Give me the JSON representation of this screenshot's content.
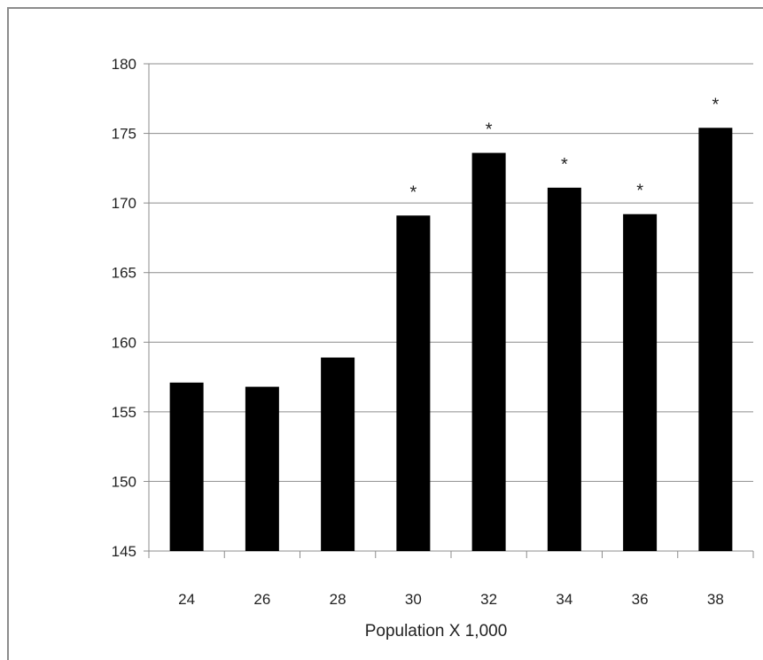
{
  "chart_data": {
    "type": "bar",
    "categories": [
      "24",
      "26",
      "28",
      "30",
      "32",
      "34",
      "36",
      "38"
    ],
    "values": [
      157.1,
      156.8,
      158.9,
      169.1,
      173.6,
      171.1,
      169.2,
      175.4
    ],
    "annotations": [
      "",
      "",
      "",
      "*",
      "*",
      "*",
      "*",
      "*"
    ],
    "xlabel": "Population X 1,000",
    "ylabel": "",
    "ylim": [
      145,
      180
    ],
    "yticks": [
      "145",
      "150",
      "155",
      "160",
      "165",
      "170",
      "175",
      "180"
    ],
    "grid": true,
    "bar_color": "#000000",
    "grid_color": "#8c8c8c"
  }
}
